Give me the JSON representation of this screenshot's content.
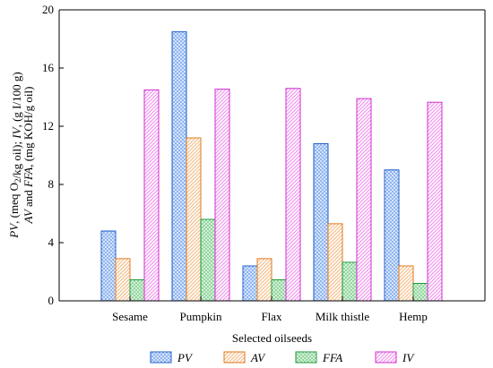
{
  "chart_data": {
    "type": "bar",
    "categories": [
      "Sesame",
      "Pumpkin",
      "Flax",
      "Milk thistle",
      "Hemp"
    ],
    "series": [
      {
        "name": "PV",
        "values": [
          4.8,
          18.5,
          2.4,
          10.8,
          9.0
        ]
      },
      {
        "name": "AV",
        "values": [
          2.9,
          11.2,
          2.9,
          5.3,
          2.4
        ]
      },
      {
        "name": "FFA",
        "values": [
          1.45,
          5.6,
          1.45,
          2.65,
          1.2
        ]
      },
      {
        "name": "IV",
        "values": [
          14.5,
          14.55,
          14.6,
          13.9,
          13.65
        ]
      }
    ],
    "xlabel": "Selected oilseeds",
    "ylabel_line1": "PV, (meq O2/kg oil); IV, (g I/100 g)",
    "ylabel_line2": "AV and FFA, (mg KOH/g oil)",
    "ylim": [
      0,
      20
    ],
    "yticks": [
      "0",
      "4",
      "8",
      "12",
      "16",
      "20"
    ],
    "grid": false,
    "legend_position": "bottom",
    "colors": {
      "PV": {
        "stroke": "#1f5fcc",
        "fill": "#8db4f0"
      },
      "AV": {
        "stroke": "#e07a1f",
        "fill": "#f6c290"
      },
      "FFA": {
        "stroke": "#1f9a3a",
        "fill": "#8fd69c"
      },
      "IV": {
        "stroke": "#d02fd0",
        "fill": "#f29af0"
      }
    }
  }
}
